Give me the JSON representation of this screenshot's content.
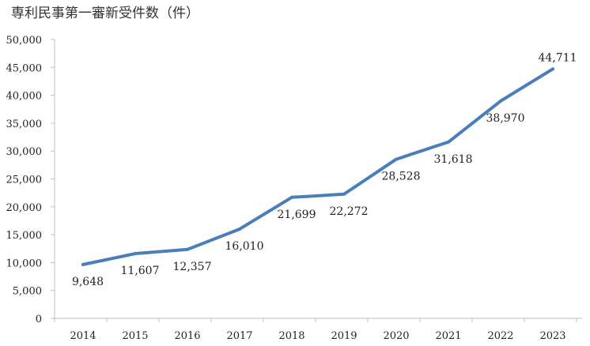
{
  "chart_data": {
    "type": "line",
    "title": "専利民事第一審新受件数（件）",
    "categories": [
      "2014",
      "2015",
      "2016",
      "2017",
      "2018",
      "2019",
      "2020",
      "2021",
      "2022",
      "2023"
    ],
    "series": [
      {
        "values": [
          9648,
          11607,
          12357,
          16010,
          21699,
          22272,
          28528,
          31618,
          38970,
          44711
        ],
        "data_labels": [
          "9,648",
          "11,607",
          "12,357",
          "16,010",
          "21,699",
          "22,272",
          "28,528",
          "31,618",
          "38,970",
          "44,711"
        ],
        "color": "#4A7EBB"
      }
    ],
    "y_ticks": [
      "0",
      "5,000",
      "10,000",
      "15,000",
      "20,000",
      "25,000",
      "30,000",
      "35,000",
      "40,000",
      "45,000",
      "50,000"
    ],
    "ylim": [
      0,
      50000
    ],
    "grid": false,
    "legend": "none",
    "axis_color": "#BFBFBF"
  }
}
